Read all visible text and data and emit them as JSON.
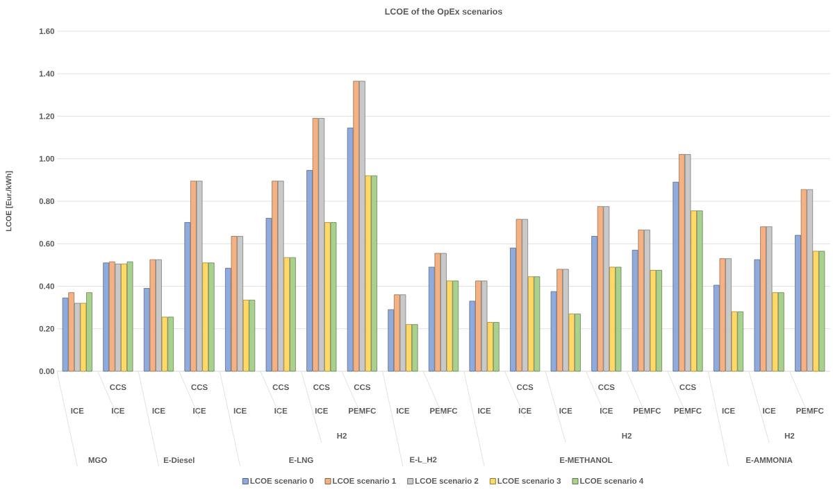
{
  "chart_data": {
    "type": "bar",
    "title": "LCOE of the OpEx scenarios",
    "ylabel": "LCOE [Eur./kWh]",
    "categories": [
      "ICE",
      "ICE",
      "ICE",
      "ICE",
      "ICE",
      "ICE",
      "ICE",
      "PEMFC",
      "ICE",
      "PEMFC",
      "ICE",
      "ICE",
      "ICE",
      "ICE",
      "PEMFC",
      "PEMFC",
      "ICE",
      "ICE",
      "PEMFC"
    ],
    "annotations": [
      "CCS",
      "CCS",
      "CCS",
      "CCS",
      "CCS",
      "CCS",
      "CCS",
      "CCS",
      "H2",
      "H2",
      "H2",
      "MGO",
      "E-Diesel",
      "E-LNG",
      "E-L_H2",
      "E-METHANOL",
      "E-AMMONIA"
    ],
    "series": [
      {
        "name": "LCOE scenario 0",
        "color": "#8faadc",
        "values": [
          0.345,
          0.51,
          0.39,
          0.7,
          0.485,
          0.72,
          0.945,
          1.145,
          0.29,
          0.49,
          0.33,
          0.58,
          0.375,
          0.635,
          0.57,
          0.89,
          0.405,
          0.525,
          0.64
        ]
      },
      {
        "name": "LCOE scenario 1",
        "color": "#f4b183",
        "values": [
          0.37,
          0.515,
          0.525,
          0.895,
          0.635,
          0.895,
          1.19,
          1.365,
          0.36,
          0.555,
          0.425,
          0.715,
          0.48,
          0.775,
          0.665,
          1.02,
          0.53,
          0.68,
          0.855
        ]
      },
      {
        "name": "LCOE scenario 2",
        "color": "#c9c9c9",
        "values": [
          0.32,
          0.505,
          0.525,
          0.895,
          0.635,
          0.895,
          1.19,
          1.365,
          0.36,
          0.555,
          0.425,
          0.715,
          0.48,
          0.775,
          0.665,
          1.02,
          0.53,
          0.68,
          0.855
        ]
      },
      {
        "name": "LCOE scenario 3",
        "color": "#ffd966",
        "values": [
          0.32,
          0.505,
          0.255,
          0.51,
          0.335,
          0.535,
          0.7,
          0.92,
          0.22,
          0.425,
          0.23,
          0.445,
          0.27,
          0.49,
          0.475,
          0.755,
          0.28,
          0.37,
          0.565
        ]
      },
      {
        "name": "LCOE scenario 4",
        "color": "#a9d18e",
        "values": [
          0.37,
          0.515,
          0.255,
          0.51,
          0.335,
          0.535,
          0.7,
          0.92,
          0.22,
          0.425,
          0.23,
          0.445,
          0.27,
          0.49,
          0.475,
          0.755,
          0.28,
          0.37,
          0.565
        ]
      }
    ],
    "ylim": [
      0,
      1.6
    ],
    "yticks": [
      {
        "value": 0,
        "label": "0.00"
      },
      {
        "value": 0.2,
        "label": "0.20"
      },
      {
        "value": 0.4,
        "label": "0.40"
      },
      {
        "value": 0.6,
        "label": "0.60"
      },
      {
        "value": 0.8,
        "label": "0.80"
      },
      {
        "value": 1.0,
        "label": "1.00"
      },
      {
        "value": 1.2,
        "label": "1.20"
      },
      {
        "value": 1.4,
        "label": "1.40"
      },
      {
        "value": 1.6,
        "label": "1.60"
      }
    ],
    "grid": "y",
    "legend": "bottom"
  }
}
